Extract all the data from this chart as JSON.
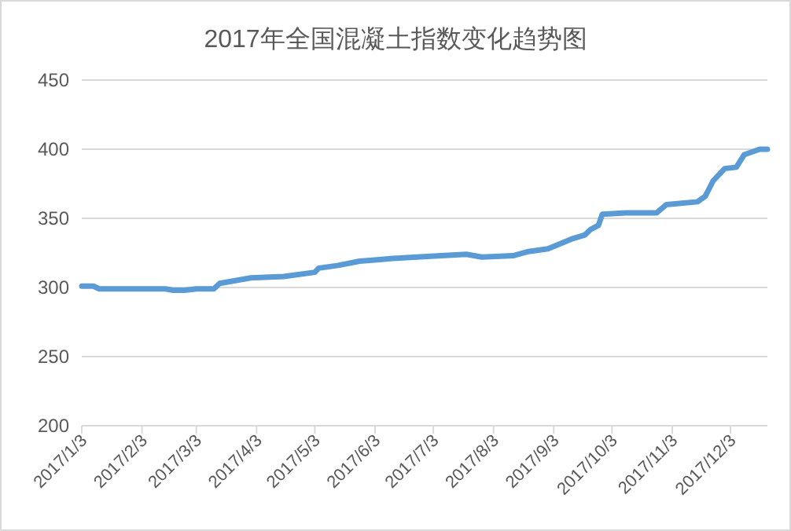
{
  "chart_data": {
    "type": "line",
    "title": "2017年全国混凝土指数变化趋势图",
    "x": [
      "2017-01-03",
      "2017-01-09",
      "2017-01-12",
      "2017-02-15",
      "2017-02-19",
      "2017-02-25",
      "2017-03-03",
      "2017-03-12",
      "2017-03-15",
      "2017-03-23",
      "2017-03-31",
      "2017-04-17",
      "2017-05-03",
      "2017-05-05",
      "2017-05-15",
      "2017-05-26",
      "2017-06-04",
      "2017-06-12",
      "2017-07-07",
      "2017-07-20",
      "2017-07-28",
      "2017-08-13",
      "2017-08-21",
      "2017-08-31",
      "2017-09-12",
      "2017-09-19",
      "2017-09-22",
      "2017-09-26",
      "2017-09-28",
      "2017-10-10",
      "2017-10-26",
      "2017-10-31",
      "2017-11-16",
      "2017-11-20",
      "2017-11-24",
      "2017-11-30",
      "2017-12-06",
      "2017-12-10",
      "2017-12-18",
      "2017-12-22"
    ],
    "series": [
      {
        "color": "#5b9bd5",
        "values": [
          301,
          301,
          299,
          299,
          298,
          298,
          299,
          299,
          303,
          305,
          307,
          308,
          311,
          314,
          316,
          319,
          320,
          321,
          323,
          324,
          322,
          323,
          326,
          328,
          335,
          338,
          342,
          345,
          353,
          354,
          354,
          360,
          362,
          366,
          377,
          386,
          387,
          396,
          400,
          400
        ]
      }
    ],
    "xlim": [
      "2017-01-03",
      "2017-12-22"
    ],
    "xticks": [
      {
        "value": "2017-01-03",
        "label": "2017/1/3"
      },
      {
        "value": "2017-02-03",
        "label": "2017/2/3"
      },
      {
        "value": "2017-03-03",
        "label": "2017/3/3"
      },
      {
        "value": "2017-04-03",
        "label": "2017/4/3"
      },
      {
        "value": "2017-05-03",
        "label": "2017/5/3"
      },
      {
        "value": "2017-06-03",
        "label": "2017/6/3"
      },
      {
        "value": "2017-07-03",
        "label": "2017/7/3"
      },
      {
        "value": "2017-08-03",
        "label": "2017/8/3"
      },
      {
        "value": "2017-09-03",
        "label": "2017/9/3"
      },
      {
        "value": "2017-10-03",
        "label": "2017/10/3"
      },
      {
        "value": "2017-11-03",
        "label": "2017/11/3"
      },
      {
        "value": "2017-12-03",
        "label": "2017/12/3"
      }
    ],
    "ylim": [
      200,
      450
    ],
    "yticks": [
      200,
      250,
      300,
      350,
      400,
      450
    ],
    "grid": "y",
    "marker": "none",
    "line_style": "solid"
  }
}
